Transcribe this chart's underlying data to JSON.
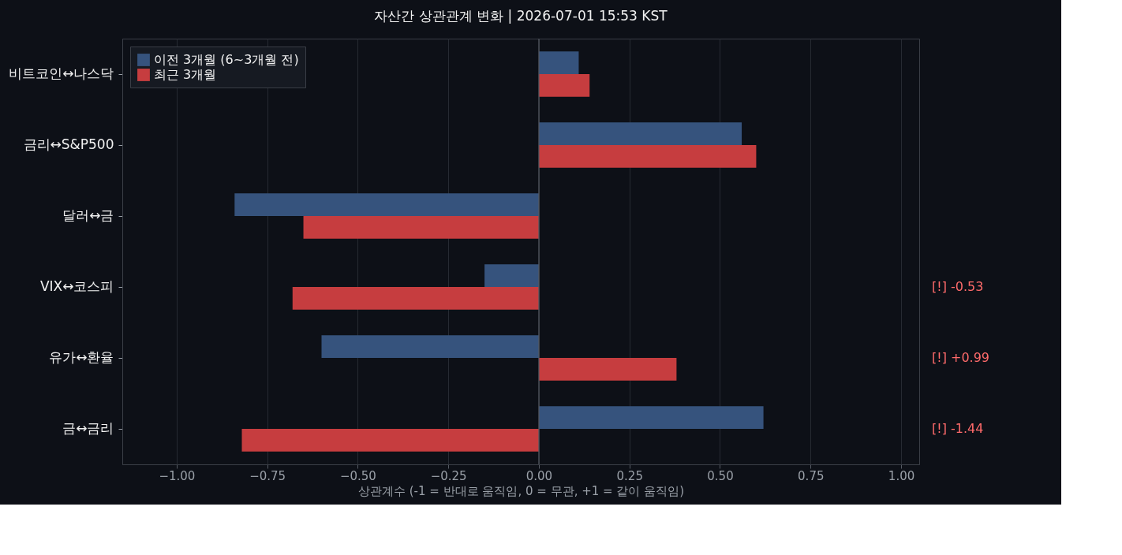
{
  "chart_data": {
    "type": "bar",
    "orientation": "horizontal",
    "title": "자산간 상관관계 변화 | 2026-07-01 15:53 KST",
    "xlabel": "상관계수 (-1 = 반대로 움직임, 0 = 무관, +1 = 같이 움직임)",
    "categories": [
      "비트코인↔나스닥",
      "금리↔S&P500",
      "달러↔금",
      "VIX↔코스피",
      "유가↔환율",
      "금↔금리"
    ],
    "series": [
      {
        "name": "이전 3개월 (6~3개월 전)",
        "color": "#36537d",
        "values": [
          0.11,
          0.56,
          -0.84,
          -0.15,
          -0.6,
          0.62
        ]
      },
      {
        "name": "최근 3개월",
        "color": "#c63d3f",
        "values": [
          0.14,
          0.6,
          -0.65,
          -0.68,
          0.38,
          -0.82
        ]
      }
    ],
    "xlim": [
      -1.15,
      1.05
    ],
    "xticks": [
      {
        "value": -1,
        "label": "−1.00"
      },
      {
        "value": -0.75,
        "label": "−0.75"
      },
      {
        "value": -0.5,
        "label": "−0.50"
      },
      {
        "value": -0.25,
        "label": "−0.25"
      },
      {
        "value": 0,
        "label": "0.00"
      },
      {
        "value": 0.25,
        "label": "0.25"
      },
      {
        "value": 0.5,
        "label": "0.50"
      },
      {
        "value": 0.75,
        "label": "0.75"
      },
      {
        "value": 1,
        "label": "1.00"
      }
    ],
    "ref_lines": [
      {
        "axis": "x",
        "value": 0,
        "color": "#555a63"
      }
    ],
    "annotations": [
      "[!] -0.53",
      "[!] +0.99",
      "[!] -1.44"
    ],
    "grid": "x",
    "legend": "top left"
  }
}
